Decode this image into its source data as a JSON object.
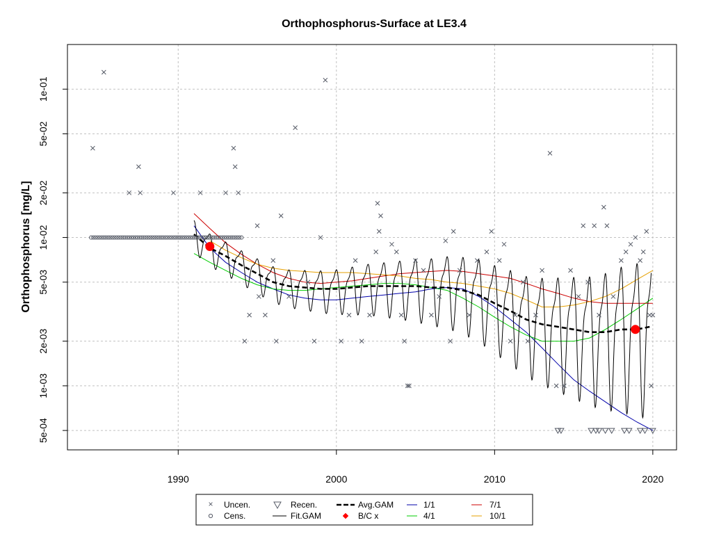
{
  "chart_data": {
    "type": "scatter",
    "title": "Orthophosphorus-Surface at LE3.4",
    "xlabel": "",
    "ylabel": "Orthophosphorus [mg/L]",
    "yscale": "log",
    "xlim": [
      1983,
      2021.5
    ],
    "ylim": [
      0.00037,
      0.2
    ],
    "x_ticks": [
      1990,
      2000,
      2010,
      2020
    ],
    "y_ticks": [
      {
        "value": 0.1,
        "label": "1e-01"
      },
      {
        "value": 0.05,
        "label": "5e-02"
      },
      {
        "value": 0.02,
        "label": "2e-02"
      },
      {
        "value": 0.01,
        "label": "1e-02"
      },
      {
        "value": 0.005,
        "label": "5e-03"
      },
      {
        "value": 0.002,
        "label": "2e-03"
      },
      {
        "value": 0.001,
        "label": "1e-03"
      },
      {
        "value": 0.0005,
        "label": "5e-04"
      }
    ],
    "grid": true,
    "colors": {
      "uncen": "#555a66",
      "fit": "#000000",
      "avg": "#000000",
      "bc": "#ff0000",
      "s1_1": "#0000aa",
      "s4_1": "#00cc00",
      "s7_1": "#cc0000",
      "s10_1": "#e6a000",
      "grid": "#c0c0c0"
    },
    "uncensored_points": [
      [
        1984.6,
        0.04
      ],
      [
        1985.3,
        0.13
      ],
      [
        1986.9,
        0.02
      ],
      [
        1987.6,
        0.02
      ],
      [
        1987.5,
        0.03
      ],
      [
        1989.7,
        0.02
      ],
      [
        1991.4,
        0.02
      ],
      [
        1993.0,
        0.02
      ],
      [
        1993.5,
        0.04
      ],
      [
        1993.6,
        0.03
      ],
      [
        1993.8,
        0.02
      ],
      [
        1995.0,
        0.012
      ],
      [
        1996.0,
        0.007
      ],
      [
        1996.5,
        0.014
      ],
      [
        1997.4,
        0.055
      ],
      [
        1998.2,
        0.005
      ],
      [
        1999.3,
        0.115
      ],
      [
        1999.0,
        0.01
      ],
      [
        1994.2,
        0.002
      ],
      [
        1994.5,
        0.003
      ],
      [
        1995.1,
        0.004
      ],
      [
        1995.5,
        0.003
      ],
      [
        1996.2,
        0.002
      ],
      [
        1997.0,
        0.004
      ],
      [
        1998.6,
        0.002
      ],
      [
        2000.3,
        0.002
      ],
      [
        2000.8,
        0.003
      ],
      [
        2001.2,
        0.007
      ],
      [
        2001.6,
        0.002
      ],
      [
        2002.1,
        0.003
      ],
      [
        2002.5,
        0.008
      ],
      [
        2002.6,
        0.017
      ],
      [
        2002.8,
        0.014
      ],
      [
        2002.7,
        0.011
      ],
      [
        2003.5,
        0.009
      ],
      [
        2003.8,
        0.008
      ],
      [
        2004.1,
        0.003
      ],
      [
        2004.3,
        0.002
      ],
      [
        2004.5,
        0.001
      ],
      [
        2004.6,
        0.001
      ],
      [
        2005.0,
        0.007
      ],
      [
        2005.5,
        0.006
      ],
      [
        2006.0,
        0.003
      ],
      [
        2006.5,
        0.004
      ],
      [
        2006.9,
        0.0095
      ],
      [
        2007.2,
        0.002
      ],
      [
        2007.4,
        0.011
      ],
      [
        2007.8,
        0.006
      ],
      [
        2008.4,
        0.003
      ],
      [
        2008.9,
        0.007
      ],
      [
        2009.5,
        0.008
      ],
      [
        2009.8,
        0.011
      ],
      [
        2010.3,
        0.007
      ],
      [
        2010.6,
        0.009
      ],
      [
        2011.0,
        0.002
      ],
      [
        2011.3,
        0.003
      ],
      [
        2011.8,
        0.005
      ],
      [
        2012.1,
        0.002
      ],
      [
        2012.6,
        0.003
      ],
      [
        2013.0,
        0.006
      ],
      [
        2013.5,
        0.037
      ],
      [
        2013.9,
        0.001
      ],
      [
        2014.4,
        0.001
      ],
      [
        2014.8,
        0.006
      ],
      [
        2015.3,
        0.004
      ],
      [
        2015.6,
        0.012
      ],
      [
        2015.9,
        0.005
      ],
      [
        2016.3,
        0.012
      ],
      [
        2016.6,
        0.003
      ],
      [
        2016.9,
        0.016
      ],
      [
        2017.1,
        0.012
      ],
      [
        2017.5,
        0.004
      ],
      [
        2018.0,
        0.007
      ],
      [
        2018.3,
        0.008
      ],
      [
        2018.6,
        0.009
      ],
      [
        2018.9,
        0.01
      ],
      [
        2019.2,
        0.007
      ],
      [
        2019.4,
        0.008
      ],
      [
        2019.6,
        0.011
      ],
      [
        2019.8,
        0.003
      ],
      [
        2019.9,
        0.001
      ],
      [
        2020.0,
        0.003
      ]
    ],
    "censored_points": {
      "x_start": 1984.5,
      "x_end": 1994.0,
      "count": 72,
      "value": 0.01
    },
    "recensored_points": [
      [
        2014.0,
        0.0005
      ],
      [
        2014.2,
        0.0005
      ],
      [
        2016.1,
        0.0005
      ],
      [
        2016.4,
        0.0005
      ],
      [
        2016.6,
        0.0005
      ],
      [
        2017.0,
        0.0005
      ],
      [
        2017.4,
        0.0005
      ],
      [
        2018.2,
        0.0005
      ],
      [
        2018.5,
        0.0005
      ],
      [
        2019.2,
        0.0005
      ],
      [
        2019.5,
        0.0005
      ],
      [
        2020.0,
        0.0005
      ]
    ],
    "avg_gam": [
      [
        1991.0,
        0.0105
      ],
      [
        1992.0,
        0.0085
      ],
      [
        1993.0,
        0.0075
      ],
      [
        1994.0,
        0.0065
      ],
      [
        1995.0,
        0.0057
      ],
      [
        1996.0,
        0.005
      ],
      [
        1997.0,
        0.0047
      ],
      [
        1998.0,
        0.0046
      ],
      [
        1999.0,
        0.0045
      ],
      [
        2000.0,
        0.0045
      ],
      [
        2001.0,
        0.0046
      ],
      [
        2002.0,
        0.0047
      ],
      [
        2003.0,
        0.0047
      ],
      [
        2004.0,
        0.0047
      ],
      [
        2005.0,
        0.0047
      ],
      [
        2006.0,
        0.0046
      ],
      [
        2007.0,
        0.0046
      ],
      [
        2008.0,
        0.0044
      ],
      [
        2009.0,
        0.0041
      ],
      [
        2010.0,
        0.0036
      ],
      [
        2011.0,
        0.0032
      ],
      [
        2012.0,
        0.0028
      ],
      [
        2013.0,
        0.0026
      ],
      [
        2014.0,
        0.0025
      ],
      [
        2015.0,
        0.0024
      ],
      [
        2016.0,
        0.0023
      ],
      [
        2017.0,
        0.0023
      ],
      [
        2018.0,
        0.0024
      ],
      [
        2019.0,
        0.0024
      ],
      [
        2019.8,
        0.0025
      ]
    ],
    "fit_gam": {
      "x_start": 1991.0,
      "x_end": 2019.9,
      "base": "avg_gam",
      "amp_start": 0.22,
      "amp_end": 1.1,
      "note": "seasonal oscillation about the Avg.GAM trend"
    },
    "bc_points": [
      [
        1992.0,
        0.0087
      ],
      [
        2018.9,
        0.0024
      ]
    ],
    "series": [
      {
        "name": "1/1",
        "color": "#0000aa",
        "points": [
          [
            1991.0,
            0.012
          ],
          [
            1992.0,
            0.0085
          ],
          [
            1993.0,
            0.0068
          ],
          [
            1994.0,
            0.0058
          ],
          [
            1995.0,
            0.005
          ],
          [
            1996.0,
            0.0045
          ],
          [
            1997.0,
            0.0041
          ],
          [
            1998.0,
            0.0039
          ],
          [
            1999.0,
            0.0038
          ],
          [
            2000.0,
            0.0038
          ],
          [
            2001.0,
            0.0039
          ],
          [
            2002.0,
            0.004
          ],
          [
            2003.0,
            0.0041
          ],
          [
            2004.0,
            0.0042
          ],
          [
            2005.0,
            0.0043
          ],
          [
            2006.0,
            0.0045
          ],
          [
            2007.0,
            0.0046
          ],
          [
            2008.0,
            0.0045
          ],
          [
            2009.0,
            0.004
          ],
          [
            2010.0,
            0.0034
          ],
          [
            2011.0,
            0.0028
          ],
          [
            2012.0,
            0.0023
          ],
          [
            2013.0,
            0.0018
          ],
          [
            2014.0,
            0.0014
          ],
          [
            2015.0,
            0.0011
          ],
          [
            2016.0,
            0.00092
          ],
          [
            2017.0,
            0.00078
          ],
          [
            2018.0,
            0.00066
          ],
          [
            2019.0,
            0.00057
          ],
          [
            2020.0,
            0.0005
          ]
        ]
      },
      {
        "name": "4/1",
        "color": "#00cc00",
        "points": [
          [
            1991.0,
            0.0078
          ],
          [
            1992.0,
            0.0068
          ],
          [
            1993.0,
            0.006
          ],
          [
            1994.0,
            0.0053
          ],
          [
            1995.0,
            0.0048
          ],
          [
            1996.0,
            0.0045
          ],
          [
            1997.0,
            0.0044
          ],
          [
            1998.0,
            0.0044
          ],
          [
            1999.0,
            0.0045
          ],
          [
            2000.0,
            0.0046
          ],
          [
            2001.0,
            0.0047
          ],
          [
            2002.0,
            0.0048
          ],
          [
            2003.0,
            0.0049
          ],
          [
            2004.0,
            0.0049
          ],
          [
            2005.0,
            0.0048
          ],
          [
            2006.0,
            0.0046
          ],
          [
            2007.0,
            0.0044
          ],
          [
            2008.0,
            0.0039
          ],
          [
            2009.0,
            0.0034
          ],
          [
            2010.0,
            0.0029
          ],
          [
            2011.0,
            0.0025
          ],
          [
            2012.0,
            0.0022
          ],
          [
            2013.0,
            0.002
          ],
          [
            2014.0,
            0.002
          ],
          [
            2015.0,
            0.002
          ],
          [
            2016.0,
            0.0021
          ],
          [
            2017.0,
            0.0024
          ],
          [
            2018.0,
            0.0028
          ],
          [
            2019.0,
            0.0033
          ],
          [
            2020.0,
            0.0039
          ]
        ]
      },
      {
        "name": "7/1",
        "color": "#cc0000",
        "points": [
          [
            1991.0,
            0.0145
          ],
          [
            1992.0,
            0.0115
          ],
          [
            1993.0,
            0.0092
          ],
          [
            1994.0,
            0.0077
          ],
          [
            1995.0,
            0.0066
          ],
          [
            1996.0,
            0.0058
          ],
          [
            1997.0,
            0.0053
          ],
          [
            1998.0,
            0.005
          ],
          [
            1999.0,
            0.0049
          ],
          [
            2000.0,
            0.005
          ],
          [
            2001.0,
            0.0051
          ],
          [
            2002.0,
            0.0053
          ],
          [
            2003.0,
            0.0055
          ],
          [
            2004.0,
            0.0057
          ],
          [
            2005.0,
            0.0058
          ],
          [
            2006.0,
            0.0059
          ],
          [
            2007.0,
            0.006
          ],
          [
            2008.0,
            0.0059
          ],
          [
            2009.0,
            0.0057
          ],
          [
            2010.0,
            0.0055
          ],
          [
            2011.0,
            0.0053
          ],
          [
            2012.0,
            0.0049
          ],
          [
            2013.0,
            0.0045
          ],
          [
            2014.0,
            0.0042
          ],
          [
            2015.0,
            0.0039
          ],
          [
            2016.0,
            0.0037
          ],
          [
            2017.0,
            0.0036
          ],
          [
            2018.0,
            0.0036
          ],
          [
            2019.0,
            0.0036
          ],
          [
            2020.0,
            0.0036
          ]
        ]
      },
      {
        "name": "10/1",
        "color": "#e6a000",
        "points": [
          [
            1992.0,
            0.0095
          ],
          [
            1993.0,
            0.0082
          ],
          [
            1994.0,
            0.0073
          ],
          [
            1995.0,
            0.0066
          ],
          [
            1996.0,
            0.0062
          ],
          [
            1997.0,
            0.006
          ],
          [
            1998.0,
            0.0059
          ],
          [
            1999.0,
            0.0058
          ],
          [
            2000.0,
            0.0058
          ],
          [
            2001.0,
            0.0058
          ],
          [
            2002.0,
            0.0057
          ],
          [
            2003.0,
            0.0056
          ],
          [
            2004.0,
            0.0055
          ],
          [
            2005.0,
            0.0053
          ],
          [
            2006.0,
            0.0052
          ],
          [
            2007.0,
            0.005
          ],
          [
            2008.0,
            0.0049
          ],
          [
            2009.0,
            0.0047
          ],
          [
            2010.0,
            0.0045
          ],
          [
            2011.0,
            0.0042
          ],
          [
            2012.0,
            0.0038
          ],
          [
            2013.0,
            0.0034
          ],
          [
            2014.0,
            0.0034
          ],
          [
            2015.0,
            0.0035
          ],
          [
            2016.0,
            0.0037
          ],
          [
            2017.0,
            0.004
          ],
          [
            2018.0,
            0.0045
          ],
          [
            2019.0,
            0.0052
          ],
          [
            2020.0,
            0.006
          ]
        ]
      }
    ],
    "legend": {
      "items": [
        {
          "key": "uncen",
          "label": "Uncen."
        },
        {
          "key": "cens",
          "label": "Cens."
        },
        {
          "key": "recen",
          "label": "Recen."
        },
        {
          "key": "fit",
          "label": "Fit.GAM"
        },
        {
          "key": "avg",
          "label": "Avg.GAM"
        },
        {
          "key": "bc",
          "label": "B/C x"
        },
        {
          "key": "s1_1",
          "label": "1/1"
        },
        {
          "key": "s4_1",
          "label": "4/1"
        },
        {
          "key": "s7_1",
          "label": "7/1"
        },
        {
          "key": "s10_1",
          "label": "10/1"
        }
      ],
      "position": "bottom"
    }
  }
}
